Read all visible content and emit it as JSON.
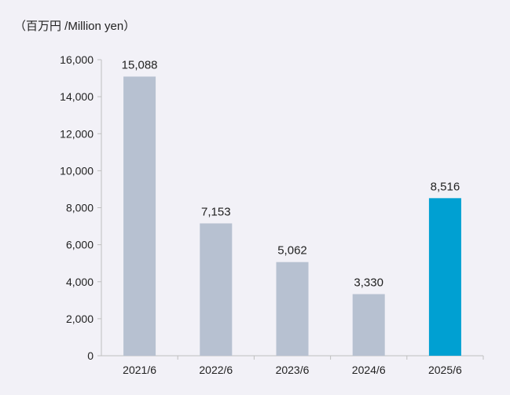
{
  "chart_data": {
    "type": "bar",
    "unit_label": "（百万円 /Million yen）",
    "categories": [
      "2021/6",
      "2022/6",
      "2023/6",
      "2024/6",
      "2025/6"
    ],
    "values": [
      15088,
      7153,
      5062,
      3330,
      8516
    ],
    "data_labels": [
      "15,088",
      "7,153",
      "5,062",
      "3,330",
      "8,516"
    ],
    "y_ticks": [
      0,
      2000,
      4000,
      6000,
      8000,
      10000,
      12000,
      14000,
      16000
    ],
    "y_tick_labels": [
      "0",
      "2,000",
      "4,000",
      "6,000",
      "8,000",
      "10,000",
      "12,000",
      "14,000",
      "16,000"
    ],
    "ylim": [
      0,
      16000
    ],
    "grid": false,
    "colors": {
      "default_bar": "#b7c1d1",
      "highlight_bar": "#00a0d2",
      "axis": "#bfbfbf",
      "background": "#f2f1f7"
    },
    "highlight_index": 4
  }
}
